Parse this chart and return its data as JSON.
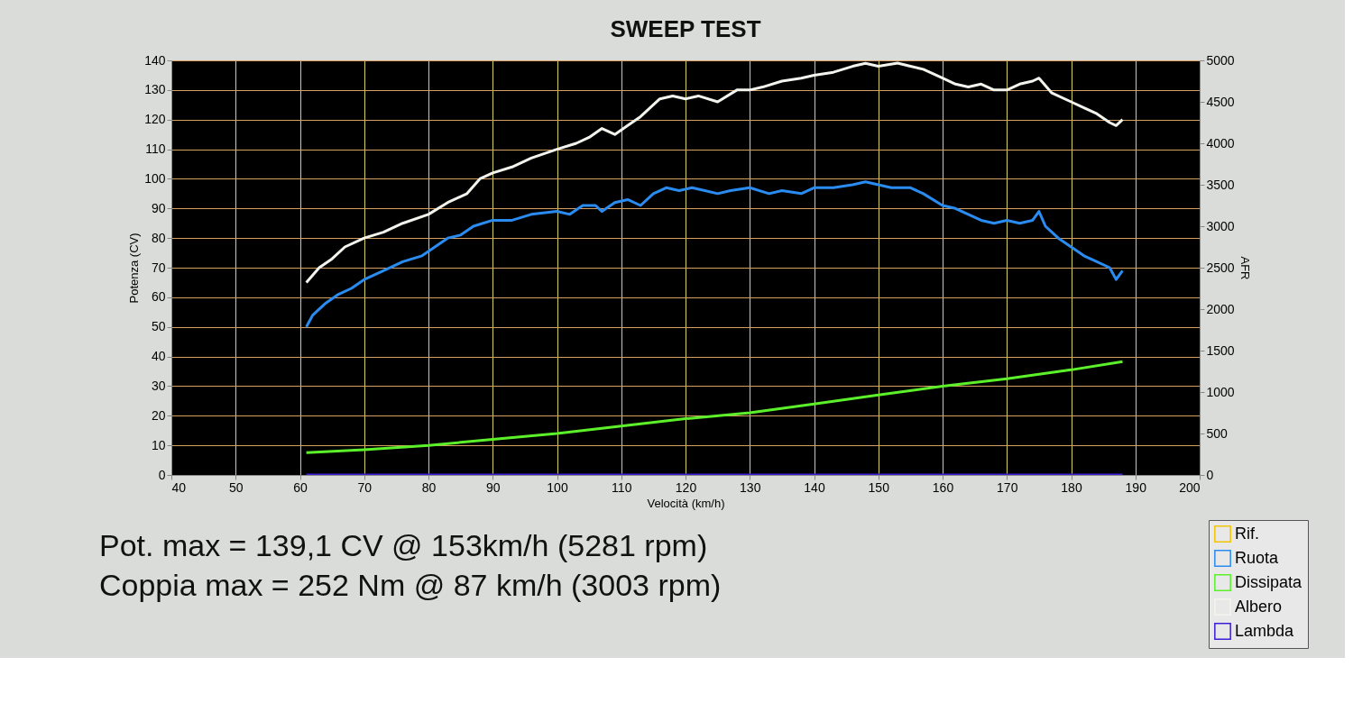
{
  "chart_data": {
    "type": "line",
    "title": "SWEEP TEST",
    "xlabel": "Velocità (km/h)",
    "ylabel": "Potenza (CV)",
    "y2label": "AFR",
    "xlim": [
      40,
      200
    ],
    "xticks": [
      40,
      50,
      60,
      70,
      80,
      90,
      100,
      110,
      120,
      130,
      140,
      150,
      160,
      170,
      180,
      190,
      200
    ],
    "ylim": [
      0,
      140
    ],
    "yticks": [
      0,
      10,
      20,
      30,
      40,
      50,
      60,
      70,
      80,
      90,
      100,
      110,
      120,
      130,
      140
    ],
    "y2lim": [
      0,
      5000
    ],
    "y2ticks": [
      0,
      500,
      1000,
      1500,
      2000,
      2500,
      3000,
      3500,
      4000,
      4500,
      5000
    ],
    "grid": true,
    "legend": "bottom right",
    "annotations": [
      "Pot. max = 139,1 CV @ 153km/h (5281 rpm)",
      "Coppia max = 252 Nm @ 87 km/h (3003 rpm)"
    ],
    "series": [
      {
        "name": "Rif.",
        "color": "#f5c400"
      },
      {
        "name": "Ruota",
        "color": "#2a8cf0",
        "x": [
          61,
          62,
          64,
          66,
          68,
          70,
          73,
          76,
          79,
          81,
          83,
          85,
          87,
          90,
          93,
          96,
          100,
          102,
          104,
          106,
          107,
          109,
          111,
          113,
          115,
          117,
          119,
          121,
          123,
          125,
          127,
          130,
          133,
          135,
          138,
          140,
          143,
          146,
          148,
          150,
          152,
          155,
          157,
          160,
          162,
          164,
          166,
          168,
          170,
          172,
          174,
          175,
          176,
          178,
          180,
          182,
          184,
          186,
          187,
          188
        ],
        "values": [
          50,
          54,
          58,
          61,
          63,
          66,
          69,
          72,
          74,
          77,
          80,
          81,
          84,
          86,
          86,
          88,
          89,
          88,
          91,
          91,
          89,
          92,
          93,
          91,
          95,
          97,
          96,
          97,
          96,
          95,
          96,
          97,
          95,
          96,
          95,
          97,
          97,
          98,
          99,
          98,
          97,
          97,
          95,
          91,
          90,
          88,
          86,
          85,
          86,
          85,
          86,
          89,
          84,
          80,
          77,
          74,
          72,
          70,
          66,
          69
        ]
      },
      {
        "name": "Dissipata",
        "color": "#5cf02a",
        "x": [
          61,
          70,
          80,
          90,
          100,
          110,
          120,
          130,
          140,
          150,
          160,
          170,
          180,
          188
        ],
        "values": [
          7.5,
          8.5,
          10,
          12,
          14,
          16.5,
          19,
          21,
          24,
          27,
          30,
          32.5,
          35.5,
          38.3
        ]
      },
      {
        "name": "Albero",
        "color": "#f4f4ee",
        "x": [
          61,
          63,
          65,
          67,
          70,
          73,
          76,
          80,
          83,
          86,
          88,
          90,
          93,
          96,
          100,
          103,
          105,
          107,
          109,
          111,
          113,
          116,
          118,
          120,
          122,
          125,
          128,
          130,
          132,
          135,
          138,
          140,
          143,
          146,
          148,
          150,
          153,
          155,
          157,
          160,
          162,
          164,
          166,
          168,
          170,
          172,
          174,
          175,
          177,
          180,
          182,
          184,
          186,
          187,
          188
        ],
        "values": [
          65,
          70,
          73,
          77,
          80,
          82,
          85,
          88,
          92,
          95,
          100,
          102,
          104,
          107,
          110,
          112,
          114,
          117,
          115,
          118,
          121,
          127,
          128,
          127,
          128,
          126,
          130,
          130,
          131,
          133,
          134,
          135,
          136,
          138,
          139,
          138,
          139.1,
          138,
          137,
          134,
          132,
          131,
          132,
          130,
          130,
          132,
          133,
          134,
          129,
          126,
          124,
          122,
          119,
          118,
          120
        ]
      },
      {
        "name": "Lambda",
        "color": "#3a1fd6",
        "axis": "y2",
        "x": [
          61,
          188
        ],
        "values": [
          0,
          0
        ]
      }
    ]
  }
}
